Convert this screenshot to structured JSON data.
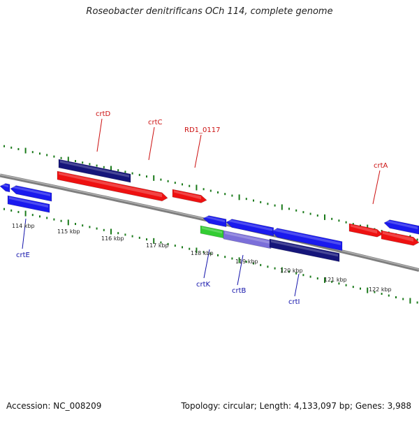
{
  "title": "Roseobacter denitrificans OCh 114, complete genome",
  "footer": {
    "accession": "Accession: NC_008209",
    "summary": "Topology: circular; Length: 4,133,097 bp; Genes: 3,988"
  },
  "colors": {
    "forward_gene": "#ee1111",
    "reverse_gene": "#1a1aee",
    "dark_gene": "#15157a",
    "green_gene": "#33cc33",
    "purple_gene": "#7b6fd9",
    "backbone": "#7f7f7f",
    "ticks": "#1a7a1a",
    "label_top": "#cc1111",
    "label_bottom": "#1111aa"
  },
  "scale_labels": [
    "114 kbp",
    "115 kbp",
    "116 kbp",
    "117 kbp",
    "118 kbp",
    "119 kbp",
    "120 kbp",
    "121 kbp",
    "122 kbp"
  ],
  "gene_labels_top": [
    "crtD",
    "crtC",
    "RD1_0117",
    "crtA"
  ],
  "gene_labels_bottom": [
    "crtE",
    "crtK",
    "crtB",
    "crtI"
  ]
}
